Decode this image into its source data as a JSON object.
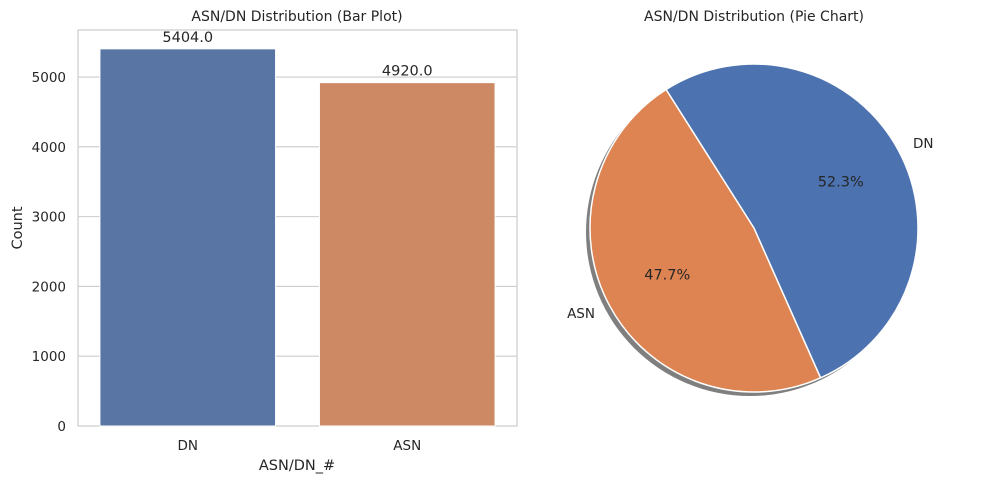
{
  "chart_data": [
    {
      "type": "bar",
      "title": "ASN/DN Distribution (Bar Plot)",
      "xlabel": "ASN/DN_#",
      "ylabel": "Count",
      "categories": [
        "DN",
        "ASN"
      ],
      "values": [
        5404.0,
        4920.0
      ],
      "data_labels": [
        "5404.0",
        "4920.0"
      ],
      "yticks": [
        0,
        1000,
        2000,
        3000,
        4000,
        5000
      ],
      "ylim": [
        0,
        5674.2
      ],
      "grid": "y",
      "colors": [
        "#5975a4",
        "#cc8963"
      ]
    },
    {
      "type": "pie",
      "title": "ASN/DN Distribution (Pie Chart)",
      "labels": [
        "ASN",
        "DN"
      ],
      "values": [
        4920,
        5404
      ],
      "percent_labels": [
        "47.7%",
        "52.3%"
      ],
      "colors": [
        "#dd8452",
        "#4c72b0"
      ],
      "shadow": true
    }
  ]
}
